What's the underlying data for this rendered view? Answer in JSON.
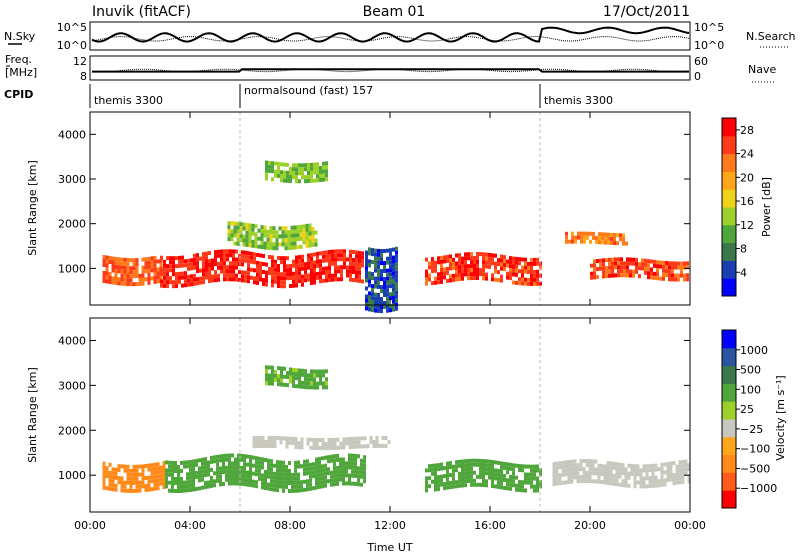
{
  "header": {
    "station": "Inuvik (fitACF)",
    "beam": "Beam 01",
    "date": "17/Oct/2011"
  },
  "strip_nsky": {
    "left_label": "N.Sky",
    "right_label": "N.Search",
    "left_ticks": [
      "10^5",
      "10^0"
    ],
    "right_ticks": [
      "10^5",
      "10^0"
    ]
  },
  "strip_freq": {
    "left_label_1": "Freq.",
    "left_label_2": "[MHz]",
    "right_label": "Nave",
    "left_ticks": [
      "12",
      "8"
    ],
    "right_ticks": [
      "60",
      "0"
    ]
  },
  "cpid": {
    "label": "CPID",
    "segments": [
      {
        "text": "themis 3300",
        "start_hour": 0
      },
      {
        "text": "normalsound (fast) 157",
        "start_hour": 6
      },
      {
        "text": "themis 3300",
        "start_hour": 18
      }
    ]
  },
  "colors": {
    "power_scale": [
      "#0000ff",
      "#1a3fb0",
      "#3a7a4a",
      "#4fa63a",
      "#9ed02a",
      "#f0d21a",
      "#ffa51a",
      "#ff7a1a",
      "#ff3a1a",
      "#ff0000"
    ],
    "velocity_scale": [
      "#ff0000",
      "#ff5a1a",
      "#ff8a1a",
      "#ffa51a",
      "#c8c8be",
      "#9ed02a",
      "#4fa63a",
      "#3a7a4a",
      "#2a55a0",
      "#0000ff"
    ]
  },
  "chart_data": [
    {
      "type": "heatmap",
      "quantity": "power",
      "ylabel": "Slant Range [km]",
      "ylim": [
        180,
        4500
      ],
      "yticks": [
        "1000",
        "2000",
        "3000",
        "4000"
      ],
      "xlim": [
        0,
        24
      ],
      "colorbar_title": "Power [dB]",
      "colorbar_ticks": [
        "4",
        "8",
        "12",
        "16",
        "20",
        "24",
        "28"
      ],
      "colorbar_range": [
        0,
        30
      ],
      "echo_bands": [
        {
          "start_hour": 0.5,
          "end_hour": 2.8,
          "range_km": [
            700,
            1300
          ],
          "value_db": 24
        },
        {
          "start_hour": 2.8,
          "end_hour": 10.9,
          "range_km": [
            700,
            1350
          ],
          "value_db": 27
        },
        {
          "start_hour": 13.4,
          "end_hour": 18.0,
          "range_km": [
            750,
            1300
          ],
          "value_db": 26
        },
        {
          "start_hour": 20.0,
          "end_hour": 23.9,
          "range_km": [
            800,
            1200
          ],
          "value_db": 25
        },
        {
          "start_hour": 19.0,
          "end_hour": 21.5,
          "range_km": [
            1600,
            1800
          ],
          "value_db": 22
        },
        {
          "start_hour": 5.5,
          "end_hour": 9.0,
          "range_km": [
            1500,
            2000
          ],
          "value_db": 13
        },
        {
          "start_hour": 7.0,
          "end_hour": 9.5,
          "range_km": [
            3000,
            3400
          ],
          "value_db": 12
        },
        {
          "start_hour": 11.0,
          "end_hour": 12.3,
          "range_km": [
            200,
            1600
          ],
          "value_db": 5
        }
      ]
    },
    {
      "type": "heatmap",
      "quantity": "velocity",
      "ylabel": "Slant Range [km]",
      "ylim": [
        180,
        4500
      ],
      "yticks": [
        "1000",
        "2000",
        "3000",
        "4000"
      ],
      "xlabel": "Time UT",
      "xlim": [
        0,
        24
      ],
      "xticks": [
        "00:00",
        "04:00",
        "08:00",
        "12:00",
        "16:00",
        "20:00",
        "00:00"
      ],
      "colorbar_title": "Velocity [m s⁻¹]",
      "colorbar_ticks": [
        "1000",
        "500",
        "100",
        "25",
        "−25",
        "−100",
        "−500",
        "−1000"
      ],
      "echo_bands": [
        {
          "start_hour": 0.5,
          "end_hour": 3.0,
          "range_km": [
            700,
            1300
          ],
          "value_mps": -300
        },
        {
          "start_hour": 3.0,
          "end_hour": 11.0,
          "range_km": [
            700,
            1400
          ],
          "value_mps": 200
        },
        {
          "start_hour": 13.4,
          "end_hour": 18.0,
          "range_km": [
            750,
            1300
          ],
          "value_mps": 300
        },
        {
          "start_hour": 18.5,
          "end_hour": 24.0,
          "range_km": [
            800,
            1300
          ],
          "value_mps": 0
        },
        {
          "start_hour": 6.5,
          "end_hour": 12.0,
          "range_km": [
            1650,
            1850
          ],
          "value_mps": 0
        },
        {
          "start_hour": 7.0,
          "end_hour": 9.5,
          "range_km": [
            3000,
            3400
          ],
          "value_mps": 150
        }
      ]
    }
  ]
}
